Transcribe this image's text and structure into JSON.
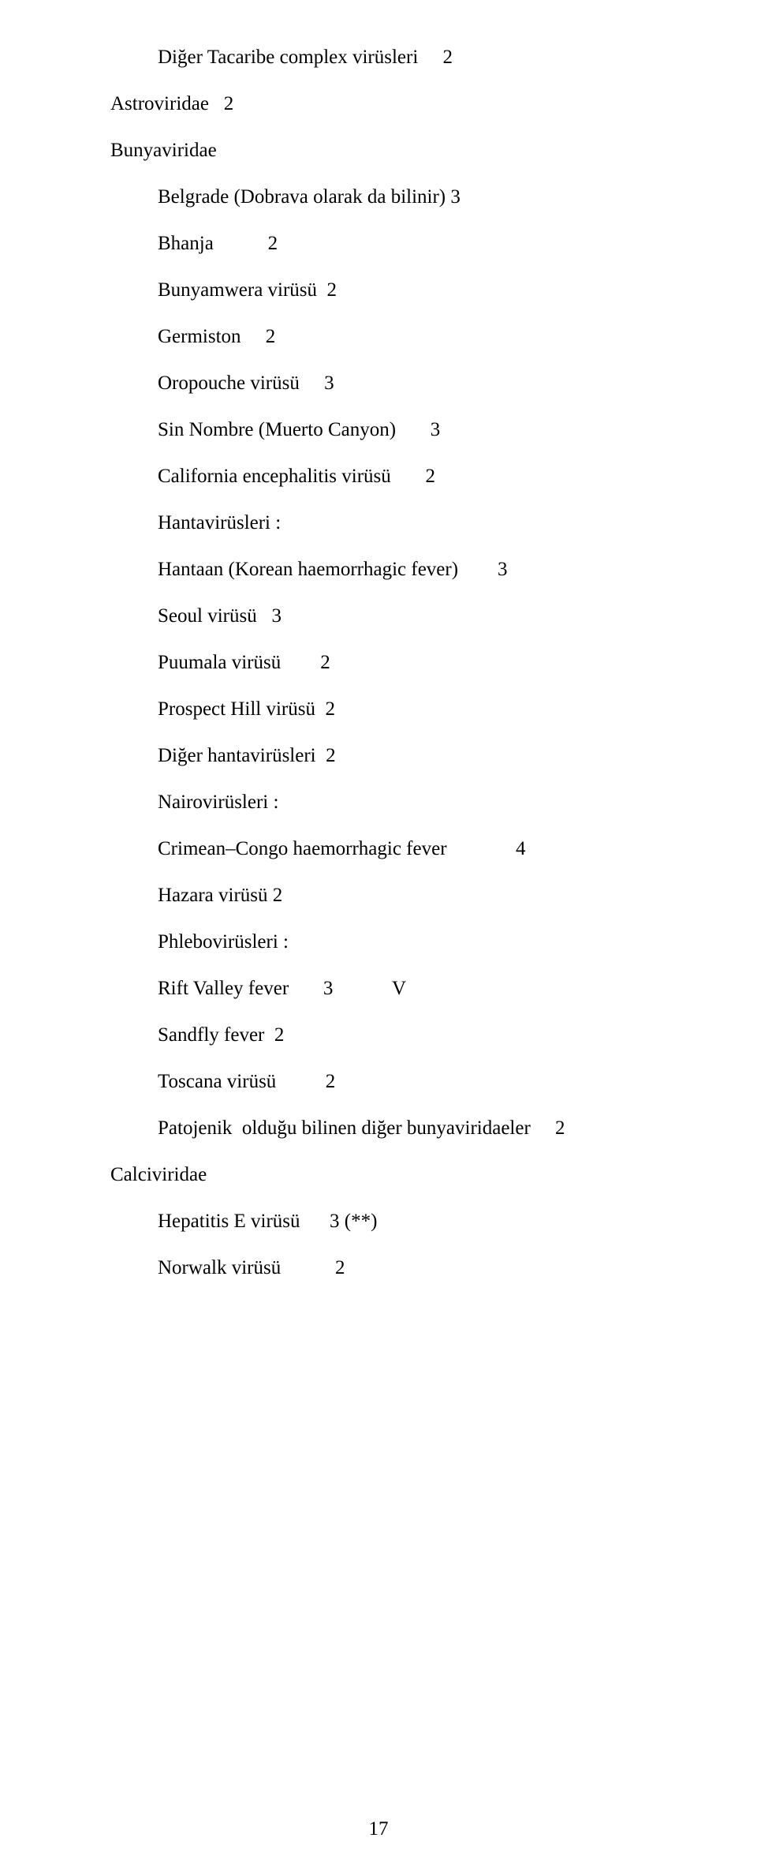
{
  "lines": [
    {
      "text": "Diğer Tacaribe complex virüsleri     2",
      "indent": 1
    },
    {
      "text": "Astroviridae   2",
      "indent": 0
    },
    {
      "text": "Bunyaviridae",
      "indent": 0
    },
    {
      "text": "Belgrade (Dobrava olarak da bilinir) 3",
      "indent": 1
    },
    {
      "text": "Bhanja           2",
      "indent": 1
    },
    {
      "text": "Bunyamwera virüsü  2",
      "indent": 1
    },
    {
      "text": "Germiston     2",
      "indent": 1
    },
    {
      "text": "Oropouche virüsü     3",
      "indent": 1
    },
    {
      "text": "Sin Nombre (Muerto Canyon)       3",
      "indent": 1
    },
    {
      "text": "California encephalitis virüsü       2",
      "indent": 1
    },
    {
      "text": "Hantavirüsleri :",
      "indent": 1
    },
    {
      "text": "Hantaan (Korean haemorrhagic fever)        3",
      "indent": 1
    },
    {
      "text": "Seoul virüsü   3",
      "indent": 1
    },
    {
      "text": "Puumala virüsü        2",
      "indent": 1
    },
    {
      "text": "Prospect Hill virüsü  2",
      "indent": 1
    },
    {
      "text": "Diğer hantavirüsleri  2",
      "indent": 1
    },
    {
      "text": "Nairovirüsleri :",
      "indent": 1
    },
    {
      "text": "Crimean–Congo haemorrhagic fever              4",
      "indent": 1
    },
    {
      "text": "Hazara virüsü 2",
      "indent": 1
    },
    {
      "text": "Phlebovirüsleri :",
      "indent": 1
    },
    {
      "text": "Rift Valley fever       3            V",
      "indent": 1
    },
    {
      "text": "Sandfly fever  2",
      "indent": 1
    },
    {
      "text": "Toscana virüsü          2",
      "indent": 1
    },
    {
      "text": "Patojenik  olduğu bilinen diğer bunyaviridaeler     2",
      "indent": 1
    },
    {
      "text": "Calciviridae",
      "indent": 0
    },
    {
      "text": "Hepatitis E virüsü      3 (**)",
      "indent": 1
    },
    {
      "text": "Norwalk virüsü           2",
      "indent": 1
    }
  ],
  "pageNumber": "17"
}
